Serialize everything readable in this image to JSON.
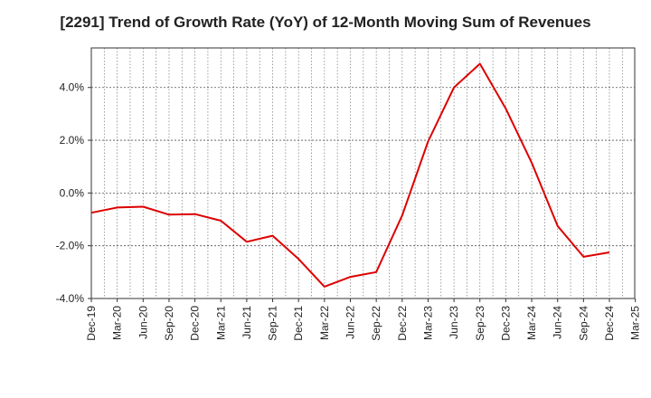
{
  "chart_data": {
    "type": "line",
    "title": "[2291]  Trend of Growth Rate (YoY) of 12-Month Moving Sum of Revenues",
    "xlabel": "",
    "ylabel": "",
    "x_tick_labels": [
      "Dec-19",
      "Mar-20",
      "Jun-20",
      "Sep-20",
      "Dec-20",
      "Mar-21",
      "Jun-21",
      "Sep-21",
      "Dec-21",
      "Mar-22",
      "Jun-22",
      "Sep-22",
      "Dec-22",
      "Mar-23",
      "Jun-23",
      "Sep-23",
      "Dec-23",
      "Mar-24",
      "Jun-24",
      "Sep-24",
      "Dec-24",
      "Mar-25"
    ],
    "y_ticks": [
      -4.0,
      -2.0,
      0.0,
      2.0,
      4.0
    ],
    "y_tick_labels": [
      "-4.0%",
      "-2.0%",
      "0.0%",
      "2.0%",
      "4.0%"
    ],
    "ylim": [
      -4.0,
      5.5
    ],
    "grid": true,
    "line_color": "#dd0000",
    "series": [
      {
        "x": [
          "Dec-19",
          "Mar-20",
          "Jun-20",
          "Sep-20",
          "Dec-20",
          "Mar-21",
          "Jun-21",
          "Sep-21",
          "Dec-21",
          "Mar-22",
          "Jun-22",
          "Sep-22",
          "Dec-22",
          "Mar-23",
          "Jun-23",
          "Sep-23",
          "Dec-23",
          "Mar-24",
          "Jun-24",
          "Sep-24",
          "Dec-24"
        ],
        "values": [
          -0.75,
          -0.55,
          -0.52,
          -0.82,
          -0.8,
          -1.05,
          -1.85,
          -1.62,
          -2.5,
          -3.55,
          -3.18,
          -3.0,
          -0.85,
          1.95,
          4.0,
          4.9,
          3.2,
          1.15,
          -1.25,
          -2.42,
          -2.25
        ]
      }
    ]
  }
}
